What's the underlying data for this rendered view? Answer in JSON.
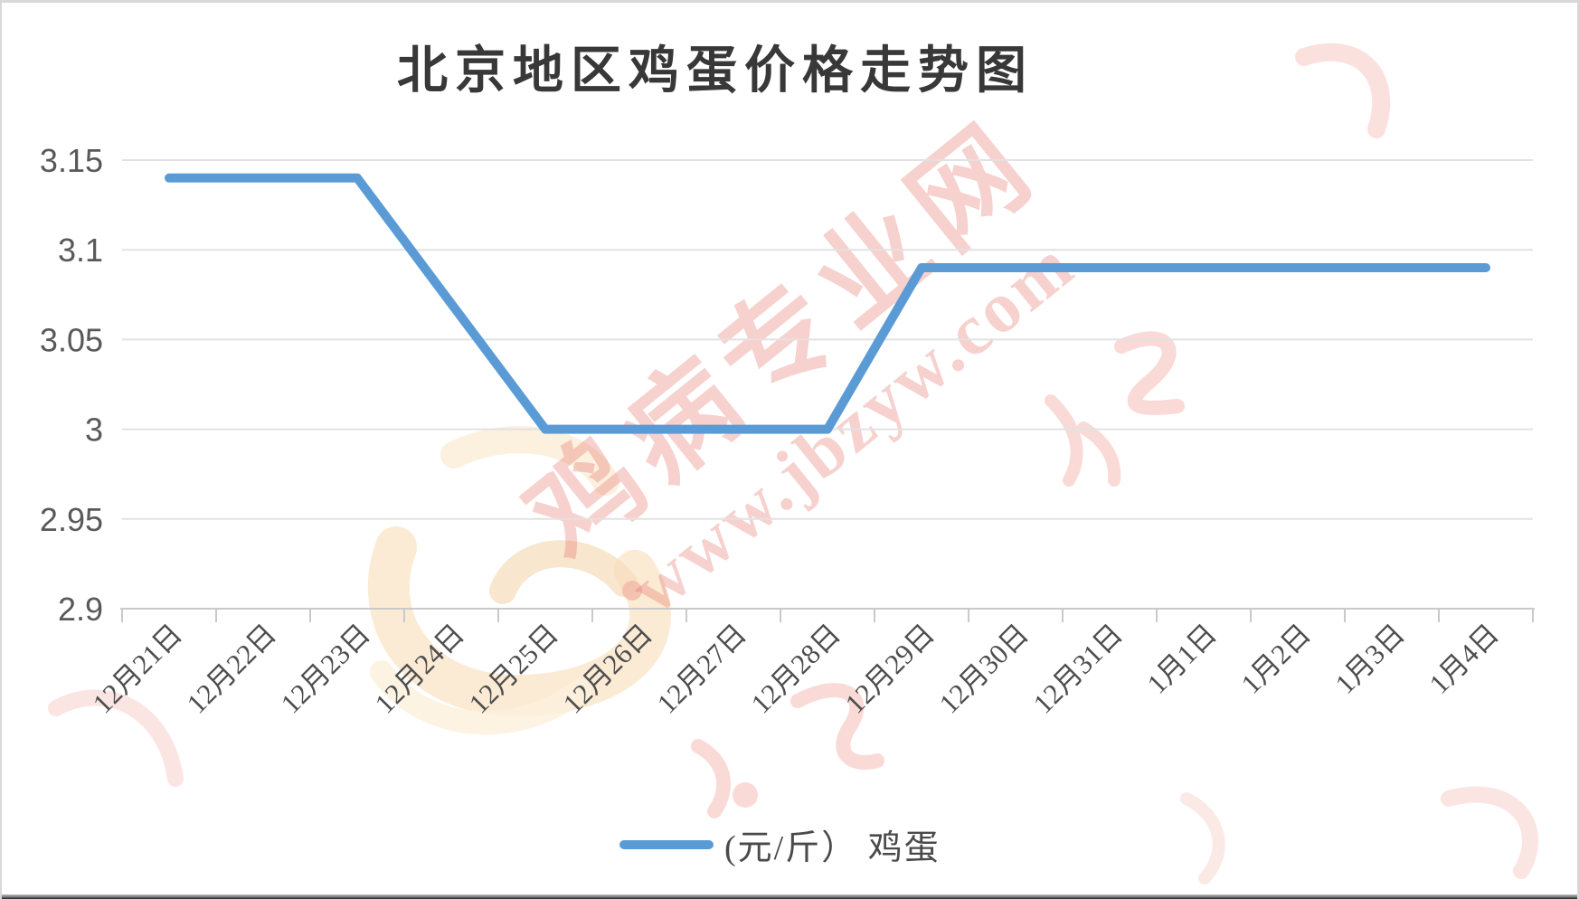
{
  "title": "北京地区鸡蛋价格走势图",
  "legend": {
    "label": "(元/斤） 鸡蛋"
  },
  "watermark": {
    "site_name": "鸡病专业网",
    "site_url": "www.jbzyw.com"
  },
  "axes": {
    "y_tick_labels": [
      "3.15",
      "3.1",
      "3.05",
      "3",
      "2.95",
      "2.9"
    ]
  },
  "chart_data": {
    "type": "line",
    "title": "北京地区鸡蛋价格走势图",
    "categories": [
      "12月21日",
      "12月22日",
      "12月23日",
      "12月24日",
      "12月25日",
      "12月26日",
      "12月27日",
      "12月28日",
      "12月29日",
      "12月30日",
      "12月31日",
      "1月1日",
      "1月2日",
      "1月3日",
      "1月4日"
    ],
    "series": [
      {
        "name": "(元/斤） 鸡蛋",
        "color": "#5B9BD5",
        "values": [
          3.14,
          3.14,
          3.14,
          3.07,
          3.0,
          3.0,
          3.0,
          3.0,
          3.09,
          3.09,
          3.09,
          3.09,
          3.09,
          3.09,
          3.09
        ]
      }
    ],
    "xlabel": "",
    "ylabel": "",
    "ylim": [
      2.9,
      3.15
    ],
    "ytick_step": 0.05,
    "grid": true,
    "legend_position": "bottom",
    "x_label_rotation": -45
  },
  "colors": {
    "line": "#5B9BD5",
    "grid": "#E2E2E2",
    "axis": "#C9C9C9",
    "y_tick_label": "#595959",
    "x_tick_label": "#4D4D4D",
    "title": "#383838",
    "watermark_red": "#E2675C",
    "logo_cream": "#FAE4C7",
    "scribble_pink": "#F4BCB4"
  }
}
